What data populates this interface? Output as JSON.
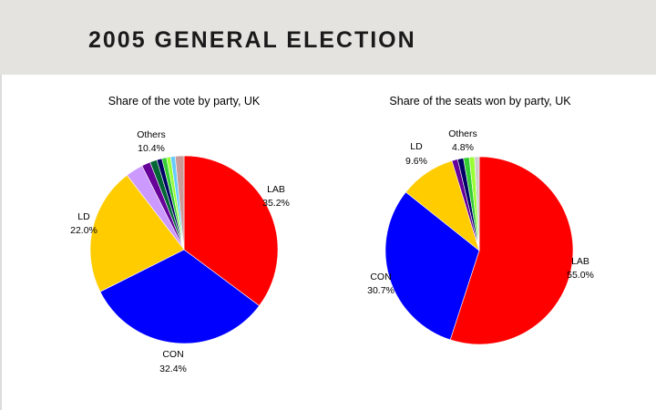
{
  "slide": {
    "title": "2005 GENERAL ELECTION"
  },
  "chart_data": [
    {
      "type": "pie",
      "title": "Share of the vote by party, UK",
      "slices": [
        {
          "name": "LAB",
          "value": 35.2,
          "label": "LAB",
          "pct": "35.2%",
          "color": "#ff0000"
        },
        {
          "name": "CON",
          "value": 32.4,
          "label": "CON",
          "pct": "32.4%",
          "color": "#0000ff"
        },
        {
          "name": "LD",
          "value": 22.0,
          "label": "LD",
          "pct": "22.0%",
          "color": "#ffcc00"
        },
        {
          "name": "Others",
          "value": 3.0,
          "color": "#cc99ff"
        },
        {
          "name": "Others",
          "value": 1.5,
          "color": "#660099"
        },
        {
          "name": "Others",
          "value": 1.2,
          "color": "#006633"
        },
        {
          "name": "Others",
          "value": 0.9,
          "color": "#000066"
        },
        {
          "name": "Others",
          "value": 0.8,
          "color": "#33cc33"
        },
        {
          "name": "Others",
          "value": 0.7,
          "color": "#99ff33"
        },
        {
          "name": "Others",
          "value": 0.8,
          "color": "#66ccff"
        },
        {
          "name": "Others",
          "value": 1.5,
          "color": "#cc9999"
        }
      ],
      "others_label": {
        "label": "Others",
        "pct": "10.4%"
      }
    },
    {
      "type": "pie",
      "title": "Share of the seats won by party, UK",
      "slices": [
        {
          "name": "LAB",
          "value": 55.0,
          "label": "LAB",
          "pct": "55.0%",
          "color": "#ff0000"
        },
        {
          "name": "CON",
          "value": 30.7,
          "label": "CON",
          "pct": "30.7%",
          "color": "#0000ff"
        },
        {
          "name": "LD",
          "value": 9.6,
          "label": "LD",
          "pct": "9.6%",
          "color": "#ffcc00"
        },
        {
          "name": "Others",
          "value": 1.0,
          "color": "#660099"
        },
        {
          "name": "Others",
          "value": 1.0,
          "color": "#000066"
        },
        {
          "name": "Others",
          "value": 1.0,
          "color": "#33cc33"
        },
        {
          "name": "Others",
          "value": 0.9,
          "color": "#99ff33"
        },
        {
          "name": "Others",
          "value": 0.8,
          "color": "#cccccc"
        }
      ],
      "others_label": {
        "label": "Others",
        "pct": "4.8%"
      }
    }
  ]
}
